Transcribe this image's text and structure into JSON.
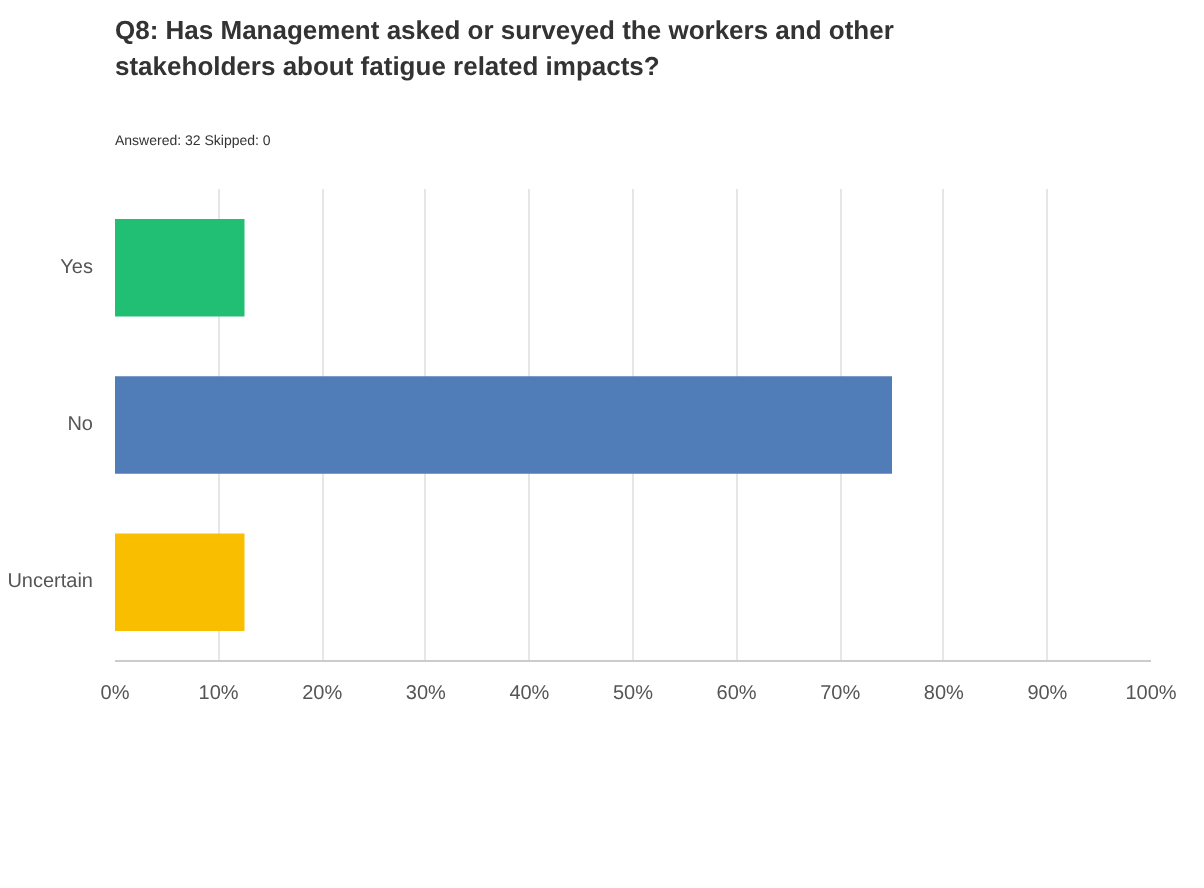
{
  "chart_data": {
    "type": "bar",
    "orientation": "horizontal",
    "title": "Q8: Has Management asked or surveyed the workers and other stakeholders about fatigue related impacts?",
    "subtitle": "Answered: 32    Skipped: 0",
    "categories": [
      "Yes",
      "No",
      "Uncertain"
    ],
    "values": [
      12.5,
      75,
      12.5
    ],
    "colors": [
      "#21bf73",
      "#507cb7",
      "#f9be00"
    ],
    "xlim": [
      0,
      100
    ],
    "xticks": [
      {
        "value": 0,
        "label": "0%"
      },
      {
        "value": 10,
        "label": "10%"
      },
      {
        "value": 20,
        "label": "20%"
      },
      {
        "value": 30,
        "label": "30%"
      },
      {
        "value": 40,
        "label": "40%"
      },
      {
        "value": 50,
        "label": "50%"
      },
      {
        "value": 60,
        "label": "60%"
      },
      {
        "value": 70,
        "label": "70%"
      },
      {
        "value": 80,
        "label": "80%"
      },
      {
        "value": 90,
        "label": "90%"
      },
      {
        "value": 100,
        "label": "100%"
      }
    ],
    "grid": "x"
  }
}
